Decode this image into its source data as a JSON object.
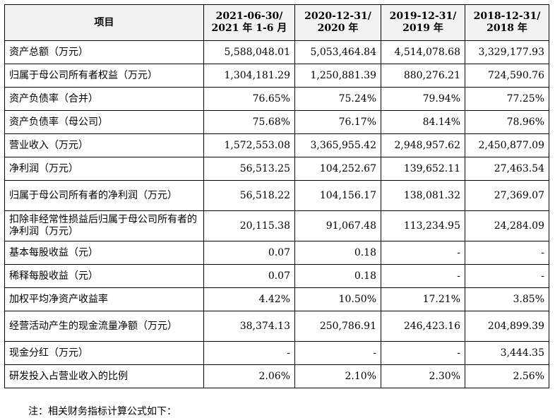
{
  "table": {
    "header": {
      "item": "项目",
      "periods": [
        {
          "line1": "2021-06-30/",
          "line2": "2021 年 1-6 月"
        },
        {
          "line1": "2020-12-31/",
          "line2": "2020 年"
        },
        {
          "line1": "2019-12-31/",
          "line2": "2019 年"
        },
        {
          "line1": "2018-12-31/",
          "line2": "2018 年"
        }
      ]
    },
    "rows": [
      {
        "label": "资产总额（万元）",
        "values": [
          "5,588,048.01",
          "5,053,464.84",
          "4,514,078.68",
          "3,329,177.93"
        ]
      },
      {
        "label": "归属于母公司所有者权益（万元）",
        "values": [
          "1,304,181.29",
          "1,250,881.39",
          "880,276.21",
          "724,590.76"
        ]
      },
      {
        "label": "资产负债率（合并）",
        "values": [
          "76.65%",
          "75.24%",
          "79.94%",
          "77.25%"
        ]
      },
      {
        "label": "资产负债率（母公司）",
        "values": [
          "75.68%",
          "76.17%",
          "84.14%",
          "78.96%"
        ]
      },
      {
        "label": "营业收入（万元）",
        "values": [
          "1,572,553.08",
          "3,365,955.42",
          "2,948,957.62",
          "2,450,877.09"
        ]
      },
      {
        "label": "净利润（万元）",
        "values": [
          "56,513.25",
          "104,252.67",
          "139,652.11",
          "27,463.54"
        ]
      },
      {
        "label": "归属于母公司所有者的净利润（万元）",
        "values": [
          "56,518.22",
          "104,156.17",
          "138,081.32",
          "27,369.07"
        ]
      },
      {
        "label": "扣除非经常性损益后归属于母公司所有者的净利润（万元）",
        "values": [
          "20,115.38",
          "91,067.48",
          "113,234.95",
          "24,284.09"
        ]
      },
      {
        "label": "基本每股收益（元）",
        "values": [
          "0.07",
          "0.18",
          "-",
          "-"
        ]
      },
      {
        "label": "稀释每股收益（元）",
        "values": [
          "0.07",
          "0.18",
          "-",
          "-"
        ]
      },
      {
        "label": "加权平均净资产收益率",
        "values": [
          "4.42%",
          "10.50%",
          "17.21%",
          "3.85%"
        ]
      },
      {
        "label": "经营活动产生的现金流量净额（万元）",
        "values": [
          "38,374.13",
          "250,786.91",
          "246,423.16",
          "204,899.39"
        ]
      },
      {
        "label": "现金分红（万元）",
        "values": [
          "-",
          "-",
          "-",
          "3,444.35"
        ]
      },
      {
        "label": "研发投入占营业收入的比例",
        "values": [
          "2.06%",
          "2.10%",
          "2.30%",
          "2.56%"
        ]
      }
    ]
  },
  "footnote": "注：相关财务指标计算公式如下："
}
